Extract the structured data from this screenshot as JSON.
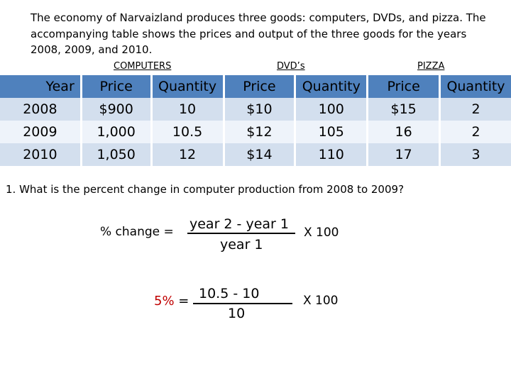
{
  "intro": {
    "line1": "The economy of Narvaizland produces three goods:  computers, DVDs, and pizza.  The",
    "line2": "accompanying table shows the prices and output of the three goods for the years",
    "line3": "2008, 2009, and 2010."
  },
  "groups": [
    "COMPUTERS",
    "DVD’s",
    "PIZZA"
  ],
  "table": {
    "headers": [
      "Year",
      "Price",
      "Quantity",
      "Price",
      "Quantity",
      "Price",
      "Quantity"
    ],
    "rows": [
      [
        "2008",
        "$900",
        "10",
        "$10",
        "100",
        "$15",
        "2"
      ],
      [
        "2009",
        "1,000",
        "10.5",
        "$12",
        "105",
        "16",
        "2"
      ],
      [
        "2010",
        "1,050",
        "12",
        "$14",
        "110",
        "17",
        "3"
      ]
    ]
  },
  "question": "1.  What is the percent change in computer production from 2008 to 2009?",
  "formula": {
    "label": "% change =",
    "numerator": "year 2  -  year 1",
    "denominator": "year 1",
    "multiplier": "X  100"
  },
  "answer": {
    "result": "5%",
    "equals": " =",
    "numerator": "10.5  -  10",
    "denominator": "10",
    "multiplier": "X  100"
  }
}
